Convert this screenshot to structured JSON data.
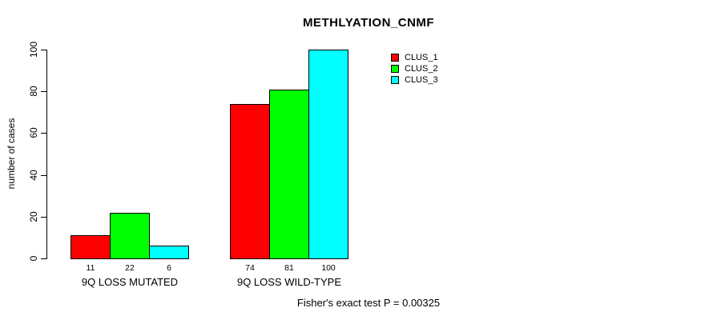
{
  "chart_data": {
    "type": "bar",
    "title": "METHLYATION_CNMF",
    "ylabel": "number of cases",
    "xlabel": "",
    "ylim": [
      0,
      100
    ],
    "yticks": [
      0,
      20,
      40,
      60,
      80,
      100
    ],
    "grid": false,
    "categories": [
      "9Q LOSS MUTATED",
      "9Q LOSS WILD-TYPE"
    ],
    "series": [
      {
        "name": "CLUS_1",
        "color": "#ff0000",
        "values": [
          11,
          74
        ]
      },
      {
        "name": "CLUS_2",
        "color": "#00ff00",
        "values": [
          22,
          81
        ]
      },
      {
        "name": "CLUS_3",
        "color": "#00ffff",
        "values": [
          6,
          100
        ]
      }
    ],
    "bar_value_labels": [
      [
        "11",
        "22",
        "6"
      ],
      [
        "74",
        "81",
        "100"
      ]
    ],
    "legend": {
      "position": "top-right-inside",
      "entries": [
        "CLUS_1",
        "CLUS_2",
        "CLUS_3"
      ]
    },
    "footnote": "Fisher's exact test P = 0.00325"
  }
}
